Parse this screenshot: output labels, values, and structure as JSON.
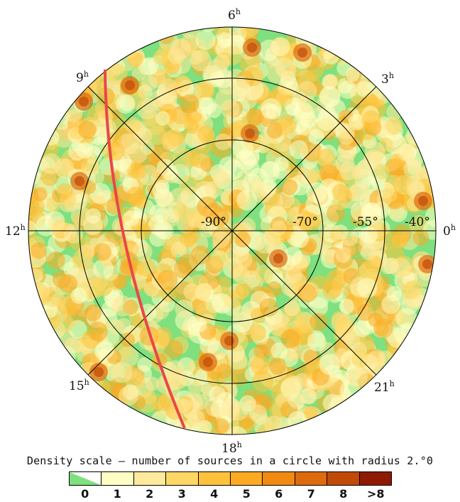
{
  "map": {
    "hour_labels": [
      {
        "h": "6",
        "sup": "h"
      },
      {
        "h": "3",
        "sup": "h"
      },
      {
        "h": "0",
        "sup": "h"
      },
      {
        "h": "21",
        "sup": "h"
      },
      {
        "h": "18",
        "sup": "h"
      },
      {
        "h": "15",
        "sup": "h"
      },
      {
        "h": "12",
        "sup": "h"
      },
      {
        "h": "9",
        "sup": "h"
      }
    ],
    "dec_labels": [
      "-90°",
      "-70°",
      "-55°",
      "-40°"
    ],
    "colors": {
      "background_zero": "#7ee07e",
      "boundary_line": "#e8474b",
      "grid": "#000000"
    }
  },
  "legend": {
    "title": "Density scale – number of sources in a circle with radius 2.°0",
    "bins": [
      {
        "label": "0",
        "color": "#7ee07e"
      },
      {
        "label": "1",
        "color": "#ffffc4"
      },
      {
        "label": "2",
        "color": "#ffe99a"
      },
      {
        "label": "3",
        "color": "#ffd765"
      },
      {
        "label": "4",
        "color": "#ffc23a"
      },
      {
        "label": "5",
        "color": "#fbaa22"
      },
      {
        "label": "6",
        "color": "#f08a10"
      },
      {
        "label": "7",
        "color": "#de6a0e"
      },
      {
        "label": "8",
        "color": "#c24a08"
      },
      {
        "label": ">8",
        "color": "#8e1a04"
      }
    ]
  }
}
